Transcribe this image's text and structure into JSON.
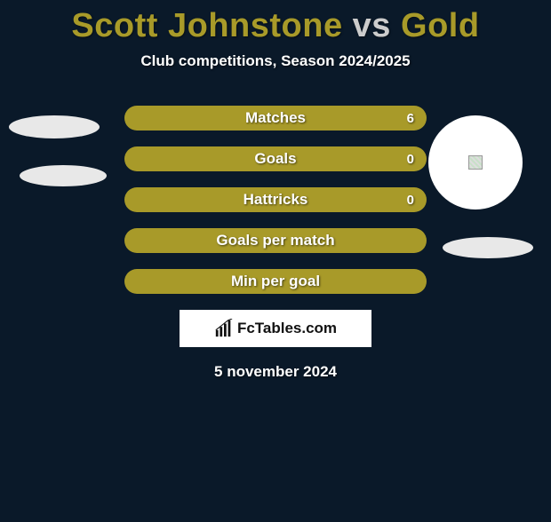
{
  "title": {
    "player1": "Scott Johnstone",
    "vs": "vs",
    "player2": "Gold",
    "player1_color": "#a89a29",
    "player2_color": "#a89a29"
  },
  "subtitle": "Club competitions, Season 2024/2025",
  "chart": {
    "bar_color": "#a89a29",
    "bar_border_radius": 14,
    "container_width": 340,
    "rows": [
      {
        "label": "Matches",
        "fill_pct": 100,
        "value_right": "6"
      },
      {
        "label": "Goals",
        "fill_pct": 100,
        "value_right": "0"
      },
      {
        "label": "Hattricks",
        "fill_pct": 100,
        "value_right": "0"
      },
      {
        "label": "Goals per match",
        "fill_pct": 100,
        "value_right": ""
      },
      {
        "label": "Min per goal",
        "fill_pct": 100,
        "value_right": ""
      }
    ]
  },
  "decorations": {
    "left_ellipse_color": "#e8e8e8",
    "right_circle_color": "#ffffff"
  },
  "logo_text": "FcTables.com",
  "date": "5 november 2024",
  "background_color": "#0a1929"
}
